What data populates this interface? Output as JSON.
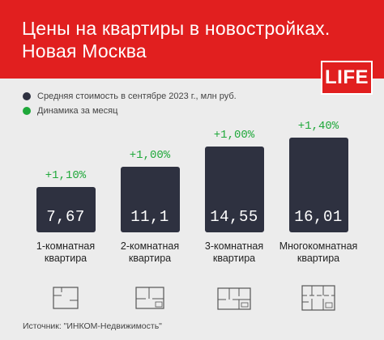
{
  "header": {
    "title_line1": "Цены на квартиры в новостройках.",
    "title_line2": "Новая Москва",
    "logo": "LIFE"
  },
  "colors": {
    "header_bg": "#e11f1f",
    "bar": "#2e3140",
    "growth": "#1fa83a",
    "background": "#ececec"
  },
  "legend": [
    {
      "label": "Средняя стоимость в сентябре 2023 г., млн руб.",
      "color": "#2e3140"
    },
    {
      "label": "Динамика за месяц",
      "color": "#1fa83a"
    }
  ],
  "chart_data": {
    "type": "bar",
    "title": "Цены на квартиры в новостройках. Новая Москва",
    "categories": [
      "1-комнатная квартира",
      "2-комнатная квартира",
      "3-комнатная квартира",
      "Многокомнатная квартира"
    ],
    "category_lines": [
      [
        "1-комнатная",
        "квартира"
      ],
      [
        "2-комнатная",
        "квартира"
      ],
      [
        "3-комнатная",
        "квартира"
      ],
      [
        "Многокомнатная",
        "квартира"
      ]
    ],
    "series": [
      {
        "name": "Средняя стоимость в сентябре 2023 г., млн руб.",
        "values": [
          7.67,
          11.1,
          14.55,
          16.01
        ],
        "labels": [
          "7,67",
          "11,1",
          "14,55",
          "16,01"
        ]
      },
      {
        "name": "Динамика за месяц",
        "values": [
          1.1,
          1.0,
          1.0,
          1.4
        ],
        "labels": [
          "+1,10%",
          "+1,00%",
          "+1,00%",
          "+1,40%"
        ]
      }
    ],
    "icons": [
      "floor-plan-1-room-icon",
      "floor-plan-2-room-icon",
      "floor-plan-3-room-icon",
      "floor-plan-multi-room-icon"
    ]
  },
  "source": "Источник: \"ИНКОМ-Недвижимость\""
}
